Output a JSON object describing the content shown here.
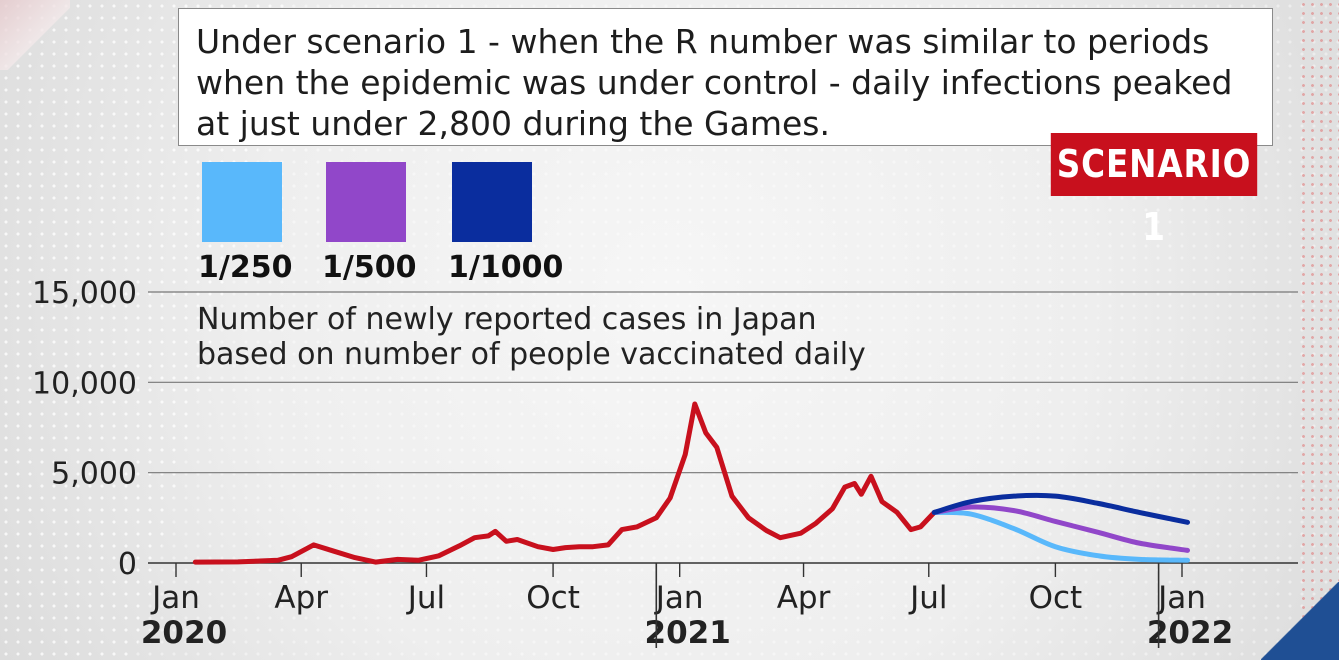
{
  "info_text": "Under scenario 1 - when the R number was similar to periods when the epidemic was under control - daily infections peaked at just under 2,800 during the Games.",
  "badge": "SCENARIO 1",
  "legend": [
    {
      "label": "1/250",
      "color": "#59b8fb"
    },
    {
      "label": "1/500",
      "color": "#9147c9"
    },
    {
      "label": "1/1000",
      "color": "#0a2d9e"
    }
  ],
  "chart_data": {
    "type": "line",
    "title": "Number of newly reported cases in Japan based on number of people vaccinated daily",
    "title_lines": [
      "Number of newly reported cases in Japan",
      "based on number of people vaccinated daily"
    ],
    "ylim": [
      0,
      15000
    ],
    "yticks": [
      {
        "value": 0,
        "label": "0"
      },
      {
        "value": 5000,
        "label": "5,000"
      },
      {
        "value": 10000,
        "label": "10,000"
      },
      {
        "value": 15000,
        "label": "15,000"
      }
    ],
    "xticks": [
      {
        "date": "2020-01",
        "label": "Jan",
        "year": "2020"
      },
      {
        "date": "2020-04",
        "label": "Apr"
      },
      {
        "date": "2020-07",
        "label": "Jul"
      },
      {
        "date": "2020-10",
        "label": "Oct"
      },
      {
        "date": "2021-01",
        "label": "Jan",
        "year": "2021"
      },
      {
        "date": "2021-04",
        "label": "Apr"
      },
      {
        "date": "2021-07",
        "label": "Jul"
      },
      {
        "date": "2021-10",
        "label": "Oct"
      },
      {
        "date": "2022-01",
        "label": "Jan",
        "year": "2022"
      }
    ],
    "year_dividers": [
      "2020-12-15",
      "2021-12-15"
    ],
    "series": [
      {
        "color": "#c8101d",
        "points": [
          [
            "2020-01-15",
            50
          ],
          [
            "2020-02-15",
            60
          ],
          [
            "2020-03-15",
            150
          ],
          [
            "2020-03-25",
            350
          ],
          [
            "2020-04-10",
            1000
          ],
          [
            "2020-04-25",
            650
          ],
          [
            "2020-05-10",
            300
          ],
          [
            "2020-05-25",
            50
          ],
          [
            "2020-06-10",
            200
          ],
          [
            "2020-06-25",
            150
          ],
          [
            "2020-07-10",
            400
          ],
          [
            "2020-07-25",
            950
          ],
          [
            "2020-08-05",
            1400
          ],
          [
            "2020-08-15",
            1500
          ],
          [
            "2020-08-20",
            1750
          ],
          [
            "2020-08-28",
            1200
          ],
          [
            "2020-09-05",
            1300
          ],
          [
            "2020-09-20",
            900
          ],
          [
            "2020-10-01",
            750
          ],
          [
            "2020-10-10",
            850
          ],
          [
            "2020-10-20",
            900
          ],
          [
            "2020-10-30",
            900
          ],
          [
            "2020-11-10",
            1000
          ],
          [
            "2020-11-20",
            1850
          ],
          [
            "2020-12-01",
            2000
          ],
          [
            "2020-12-15",
            2500
          ],
          [
            "2020-12-25",
            3600
          ],
          [
            "2021-01-05",
            6000
          ],
          [
            "2021-01-12",
            8800
          ],
          [
            "2021-01-20",
            7200
          ],
          [
            "2021-01-28",
            6400
          ],
          [
            "2021-02-08",
            3700
          ],
          [
            "2021-02-20",
            2500
          ],
          [
            "2021-03-05",
            1800
          ],
          [
            "2021-03-15",
            1400
          ],
          [
            "2021-03-30",
            1650
          ],
          [
            "2021-04-10",
            2200
          ],
          [
            "2021-04-22",
            3000
          ],
          [
            "2021-05-01",
            4200
          ],
          [
            "2021-05-08",
            4400
          ],
          [
            "2021-05-13",
            3800
          ],
          [
            "2021-05-20",
            4800
          ],
          [
            "2021-05-28",
            3400
          ],
          [
            "2021-06-08",
            2800
          ],
          [
            "2021-06-18",
            1850
          ],
          [
            "2021-06-25",
            2000
          ],
          [
            "2021-07-05",
            2800
          ]
        ]
      },
      {
        "name": "1/250",
        "color": "#59b8fb",
        "points": [
          [
            "2021-07-05",
            2800
          ],
          [
            "2021-08-01",
            2700
          ],
          [
            "2021-09-01",
            1900
          ],
          [
            "2021-10-01",
            900
          ],
          [
            "2021-11-01",
            400
          ],
          [
            "2021-12-01",
            200
          ],
          [
            "2022-01-05",
            150
          ]
        ]
      },
      {
        "name": "1/500",
        "color": "#9147c9",
        "points": [
          [
            "2021-07-05",
            2800
          ],
          [
            "2021-08-01",
            3100
          ],
          [
            "2021-09-01",
            2900
          ],
          [
            "2021-10-01",
            2300
          ],
          [
            "2021-11-01",
            1700
          ],
          [
            "2021-12-01",
            1100
          ],
          [
            "2022-01-05",
            700
          ]
        ]
      },
      {
        "name": "1/1000",
        "color": "#0a2d9e",
        "points": [
          [
            "2021-07-05",
            2800
          ],
          [
            "2021-08-01",
            3400
          ],
          [
            "2021-09-01",
            3700
          ],
          [
            "2021-10-01",
            3700
          ],
          [
            "2021-11-01",
            3300
          ],
          [
            "2021-12-01",
            2800
          ],
          [
            "2022-01-05",
            2250
          ]
        ]
      }
    ],
    "grid": true
  }
}
